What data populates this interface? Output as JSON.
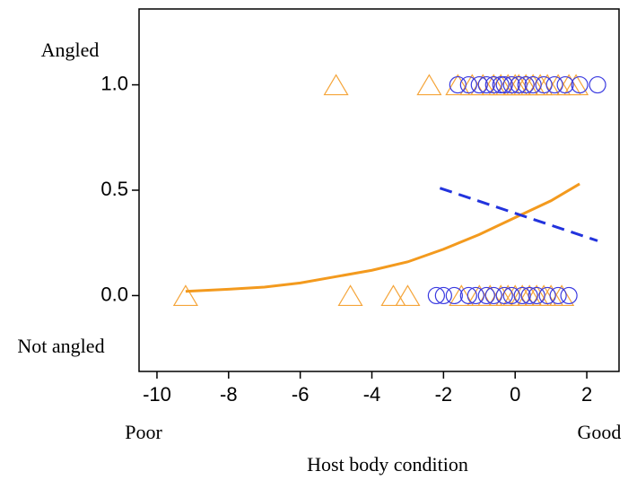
{
  "chart_data": {
    "type": "scatter",
    "x_label": "Host body condition",
    "annotations": {
      "top_y": "Angled",
      "bottom_y": "Not angled",
      "left_x": "Poor",
      "right_x": "Good"
    },
    "xlim": [
      -10.5,
      2.9
    ],
    "ylim": [
      -0.36,
      1.36
    ],
    "xticks": [
      -10,
      -8,
      -6,
      -4,
      -2,
      0,
      2
    ],
    "yticks": [
      {
        "value": 0,
        "label": "0.0"
      },
      {
        "value": 0.5,
        "label": "0.5"
      },
      {
        "value": 1,
        "label": "1.0"
      }
    ],
    "grid": false,
    "series": [
      {
        "marker": "triangle",
        "color": "#f5a53a",
        "x": [
          -5.0,
          -2.4,
          -1.6,
          -1.2,
          -0.9,
          -0.6,
          -0.4,
          -0.2,
          0,
          0.1,
          0.3,
          0.5,
          0.7,
          0.9,
          1.2,
          1.5,
          1.7,
          -9.2,
          -4.6,
          -3.4,
          -3.0,
          -1.5,
          -1.0,
          -0.7,
          -0.4,
          -0.2,
          0,
          0.2,
          0.4,
          0.6,
          0.8,
          1.0,
          1.3
        ],
        "values": [
          1,
          1,
          1,
          1,
          1,
          1,
          1,
          1,
          1,
          1,
          1,
          1,
          1,
          1,
          1,
          1,
          1,
          0,
          0,
          0,
          0,
          0,
          0,
          0,
          0,
          0,
          0,
          0,
          0,
          0,
          0,
          0,
          0
        ]
      },
      {
        "marker": "circle",
        "color": "#3a3ae0",
        "x": [
          -1.6,
          -1.3,
          -1.0,
          -0.8,
          -0.6,
          -0.4,
          -0.3,
          -0.1,
          0.1,
          0.3,
          0.5,
          0.8,
          1.1,
          1.4,
          1.8,
          2.3,
          -2.2,
          -2.0,
          -1.7,
          -1.3,
          -1.1,
          -0.8,
          -0.6,
          -0.3,
          -0.1,
          0.2,
          0.4,
          0.6,
          0.9,
          1.2,
          1.5
        ],
        "values": [
          1,
          1,
          1,
          1,
          1,
          1,
          1,
          1,
          1,
          1,
          1,
          1,
          1,
          1,
          1,
          1,
          0,
          0,
          0,
          0,
          0,
          0,
          0,
          0,
          0,
          0,
          0,
          0,
          0,
          0,
          0
        ]
      },
      {
        "marker": "line",
        "color": "#f39a1e",
        "dash": false,
        "x": [
          -9.2,
          -8,
          -7,
          -6,
          -5,
          -4,
          -3,
          -2,
          -1,
          0,
          1,
          1.8
        ],
        "values": [
          0.02,
          0.03,
          0.04,
          0.06,
          0.09,
          0.12,
          0.16,
          0.22,
          0.29,
          0.37,
          0.45,
          0.53
        ]
      },
      {
        "marker": "line",
        "color": "#2233dd",
        "dash": true,
        "x": [
          -2.1,
          2.3
        ],
        "values": [
          0.51,
          0.26
        ]
      }
    ]
  }
}
